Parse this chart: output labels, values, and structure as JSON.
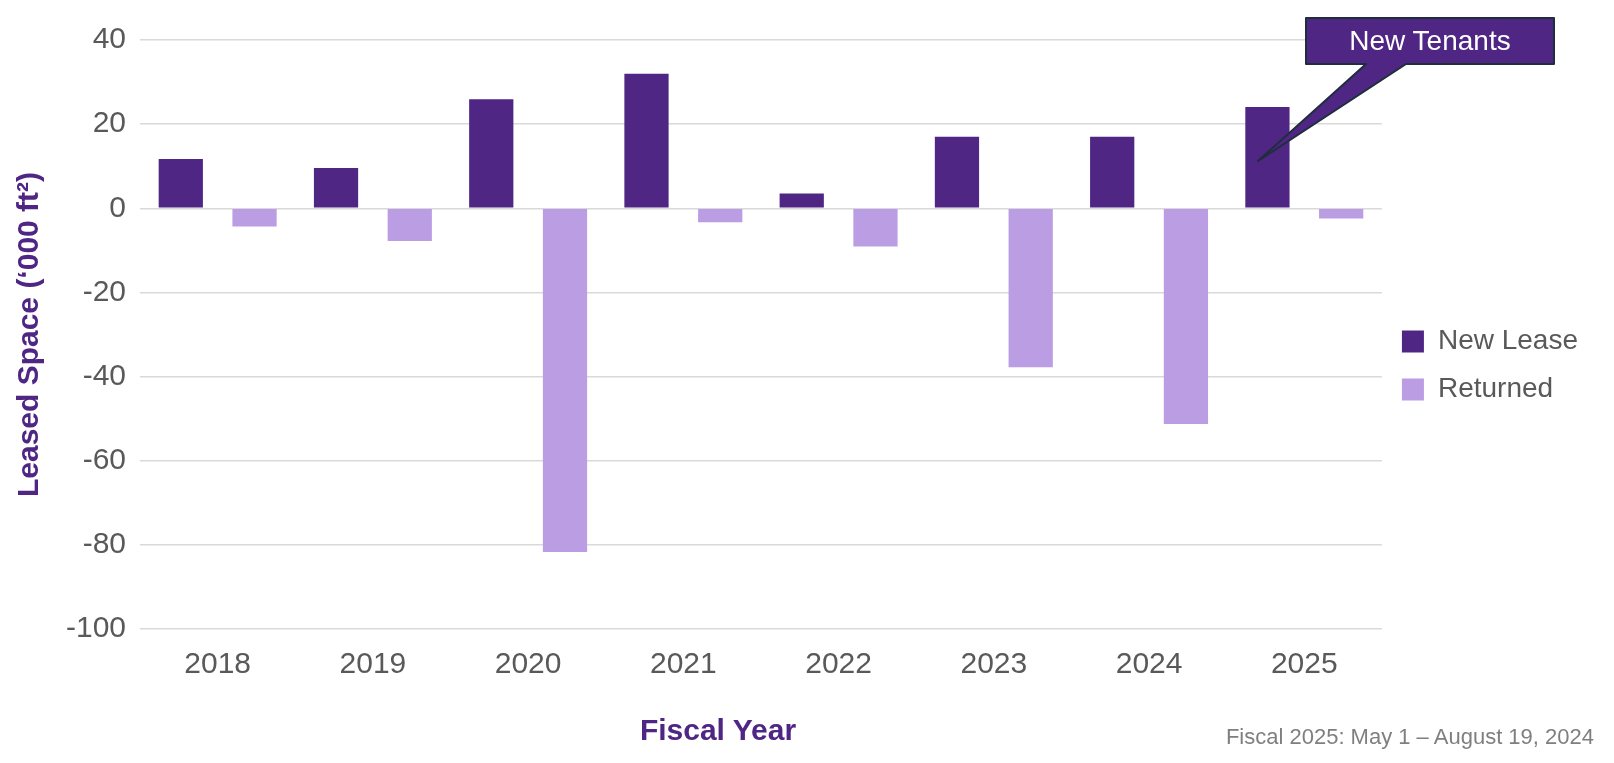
{
  "chart_data": {
    "type": "bar",
    "xlabel": "Fiscal Year",
    "ylabel": "Leased Space (‘000 ft²)",
    "categories": [
      "2018",
      "2019",
      "2020",
      "2021",
      "2022",
      "2023",
      "2024",
      "2025"
    ],
    "series": [
      {
        "name": "New Lease",
        "color": "#4f2683",
        "values": [
          11.7,
          9.6,
          25.9,
          32,
          3.5,
          17,
          17,
          24.1
        ]
      },
      {
        "name": "Returned",
        "color": "#bb9de3",
        "values": [
          -4.3,
          -7.8,
          -81.7,
          -3.3,
          -9.1,
          -37.8,
          -51.3,
          -2.4
        ]
      }
    ],
    "ylim": [
      -100,
      40
    ],
    "yticks": [
      -100,
      -80,
      -60,
      -40,
      -20,
      0,
      20,
      40
    ],
    "grid": "y",
    "legend": "right",
    "annotations": [
      "New Tenants",
      "Fiscal 2025: May 1 – August 19, 2024"
    ]
  }
}
